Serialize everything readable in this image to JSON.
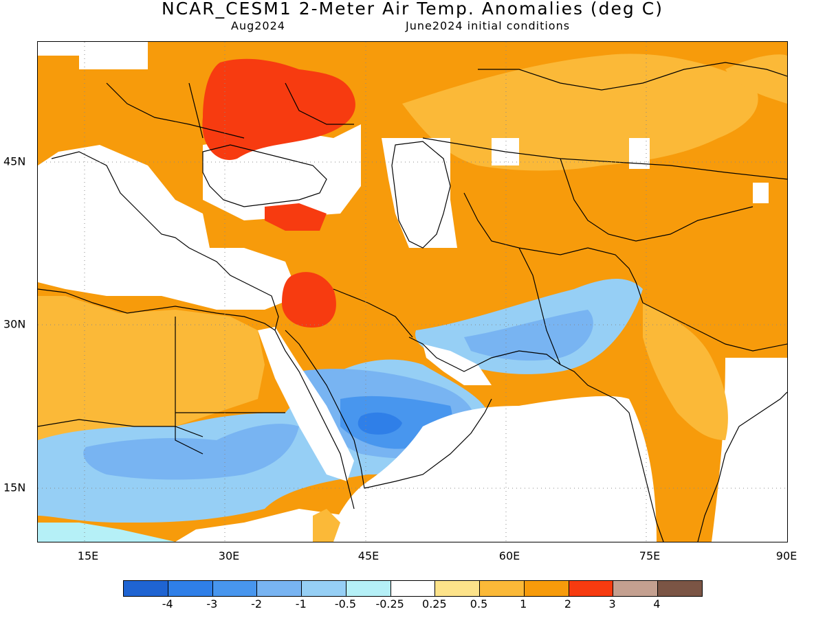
{
  "header": {
    "title": "NCAR_CESM1 2-Meter Air Temp. Anomalies (deg C)",
    "valid_month": "Aug2024",
    "initial_conditions": "June2024 initial conditions"
  },
  "axes": {
    "lon_labels": [
      "15E",
      "30E",
      "45E",
      "60E",
      "75E",
      "90E"
    ],
    "lat_labels": [
      "45N",
      "30N",
      "15N"
    ]
  },
  "colorbar": {
    "colors": [
      "#1f64d2",
      "#2f7fe8",
      "#4896ee",
      "#78b4f2",
      "#96cff5",
      "#b5f0f7",
      "#ffffff",
      "#fde38a",
      "#fbb938",
      "#f79b0b",
      "#f73b10",
      "#c4a090",
      "#7b5545"
    ],
    "labels": [
      "-4",
      "-3",
      "-2",
      "-1",
      "-0.5",
      "-0.25",
      "0.25",
      "0.5",
      "1",
      "2",
      "3",
      "4"
    ]
  }
}
